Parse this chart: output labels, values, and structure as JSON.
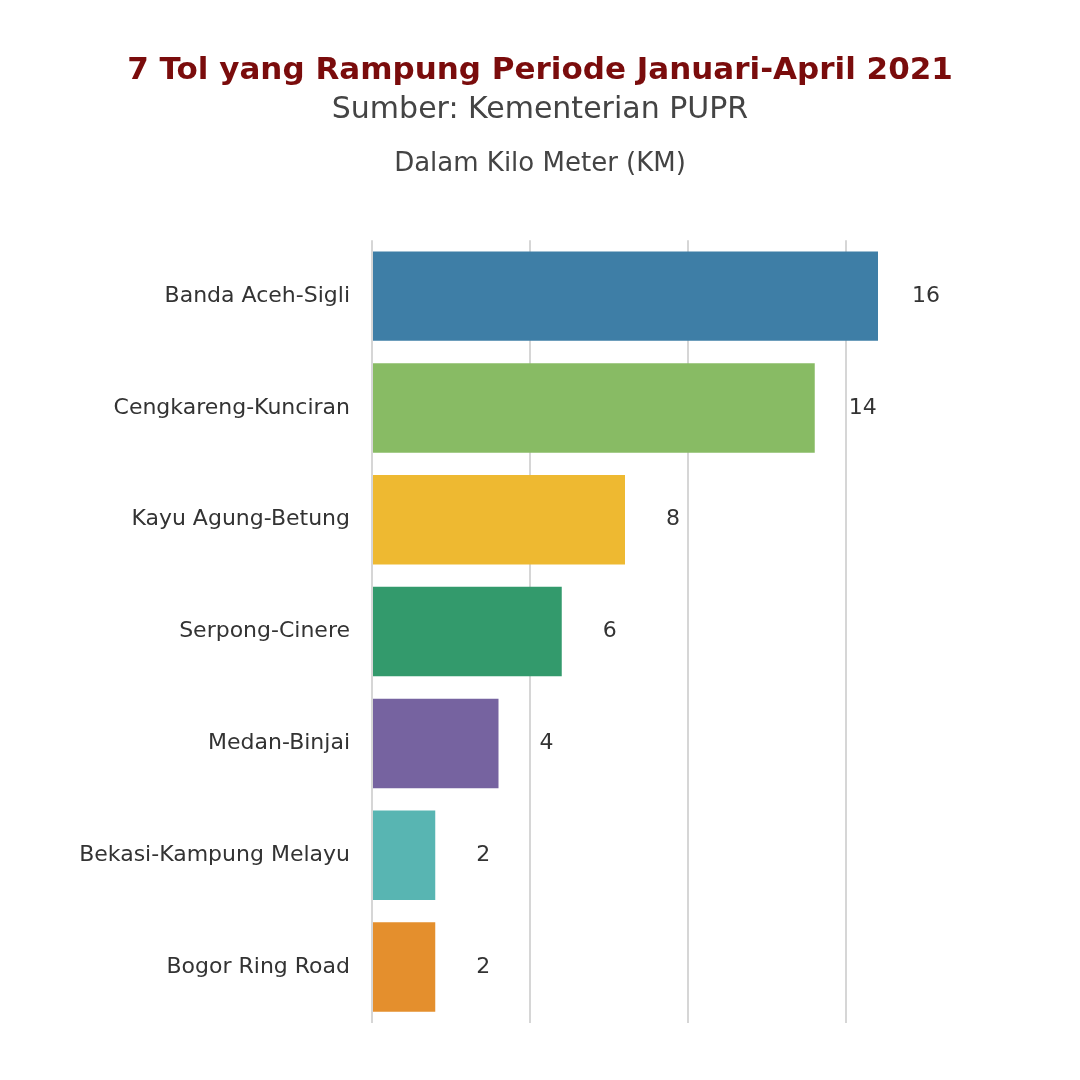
{
  "chart_data": {
    "type": "bar",
    "orientation": "horizontal",
    "title": "7 Tol yang Rampung Periode Januari-April 2021",
    "subtitle": "Dalam Kilo Meter (KM)",
    "annotations": [
      "Sumber: Kementerian PUPR"
    ],
    "categories": [
      "Banda Aceh-Sigli",
      "Cengkareng-Kunciran",
      "Kayu Agung-Betung",
      "Serpong-Cinere",
      "Medan-Binjai",
      "Bekasi-Kampung Melayu",
      "Bogor Ring Road"
    ],
    "values": [
      16,
      14,
      8,
      6,
      4,
      2,
      2
    ],
    "colors": [
      "#3e7ea6",
      "#88bb64",
      "#eeb931",
      "#339a6c",
      "#7663a0",
      "#58b5b2",
      "#e48f2d"
    ],
    "xticks": [
      {
        "value": 0,
        "label": null
      },
      {
        "value": 5,
        "label": null
      },
      {
        "value": 10,
        "label": null
      },
      {
        "value": 15,
        "label": null
      }
    ],
    "grid": "x",
    "tick_labels": "y",
    "data_labels": true
  }
}
